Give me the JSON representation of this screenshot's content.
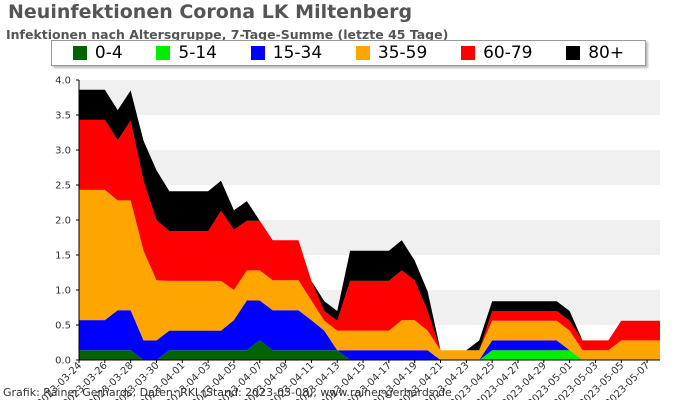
{
  "chart_data": {
    "type": "area",
    "stacked": true,
    "title": "Neuinfektionen Corona LK Miltenberg",
    "subtitle": "Infektionen nach Altersgruppe, 7-Tage-Summe (letzte 45 Tage)",
    "xlabel": "",
    "ylabel": "",
    "ylim": [
      0,
      4
    ],
    "y_ticks": [
      "0.0",
      "0.5",
      "1.0",
      "1.5",
      "2.0",
      "2.5",
      "3.0",
      "3.5",
      "4.0"
    ],
    "grid": "alternating horizontal bands",
    "legend_position": "top",
    "x_ticks": [
      "2023-03-24",
      "2023-03-26",
      "2023-03-28",
      "2023-03-30",
      "2023-04-01",
      "2023-04-03",
      "2023-04-05",
      "2023-04-07",
      "2023-04-09",
      "2023-04-11",
      "2023-04-13",
      "2023-04-15",
      "2023-04-17",
      "2023-04-19",
      "2023-04-21",
      "2023-04-23",
      "2023-04-25",
      "2023-04-27",
      "2023-04-29",
      "2023-05-01",
      "2023-05-03",
      "2023-05-05",
      "2023-05-07"
    ],
    "x": [
      "2023-03-24",
      "2023-03-25",
      "2023-03-26",
      "2023-03-27",
      "2023-03-28",
      "2023-03-29",
      "2023-03-30",
      "2023-03-31",
      "2023-04-01",
      "2023-04-02",
      "2023-04-03",
      "2023-04-04",
      "2023-04-05",
      "2023-04-06",
      "2023-04-07",
      "2023-04-08",
      "2023-04-09",
      "2023-04-10",
      "2023-04-11",
      "2023-04-12",
      "2023-04-13",
      "2023-04-14",
      "2023-04-15",
      "2023-04-16",
      "2023-04-17",
      "2023-04-18",
      "2023-04-19",
      "2023-04-20",
      "2023-04-21",
      "2023-04-22",
      "2023-04-23",
      "2023-04-24",
      "2023-04-25",
      "2023-04-26",
      "2023-04-27",
      "2023-04-28",
      "2023-04-29",
      "2023-04-30",
      "2023-05-01",
      "2023-05-02",
      "2023-05-03",
      "2023-05-04",
      "2023-05-05",
      "2023-05-06",
      "2023-05-07",
      "2023-05-08"
    ],
    "series": [
      {
        "name": "0-4",
        "color": "#006400",
        "values": [
          0.14,
          0.14,
          0.14,
          0.14,
          0.14,
          0.0,
          0.0,
          0.14,
          0.14,
          0.14,
          0.14,
          0.14,
          0.14,
          0.14,
          0.28,
          0.14,
          0.14,
          0.14,
          0.14,
          0.14,
          0.14,
          0.0,
          0.0,
          0.0,
          0.0,
          0.0,
          0.0,
          0.0,
          0.0,
          0.0,
          0.0,
          0.0,
          0.0,
          0.0,
          0.0,
          0.0,
          0.0,
          0.0,
          0.0,
          0.0,
          0.0,
          0.0,
          0.0,
          0.0,
          0.0,
          0.0
        ]
      },
      {
        "name": "5-14",
        "color": "#00ee00",
        "values": [
          0,
          0,
          0,
          0,
          0,
          0,
          0,
          0,
          0,
          0,
          0,
          0,
          0,
          0,
          0,
          0,
          0,
          0,
          0,
          0,
          0,
          0,
          0,
          0,
          0,
          0,
          0,
          0,
          0,
          0,
          0,
          0,
          0.14,
          0.14,
          0.14,
          0.14,
          0.14,
          0.14,
          0.14,
          0.0,
          0,
          0,
          0,
          0,
          0,
          0
        ]
      },
      {
        "name": "15-34",
        "color": "#0000ff",
        "values": [
          0.43,
          0.43,
          0.43,
          0.57,
          0.57,
          0.28,
          0.28,
          0.28,
          0.28,
          0.28,
          0.28,
          0.28,
          0.43,
          0.71,
          0.57,
          0.57,
          0.57,
          0.57,
          0.43,
          0.28,
          0.0,
          0.14,
          0.14,
          0.14,
          0.14,
          0.14,
          0.14,
          0.14,
          0.0,
          0.0,
          0.0,
          0.0,
          0.14,
          0.14,
          0.14,
          0.14,
          0.14,
          0.14,
          0.0,
          0.0,
          0.0,
          0.0,
          0.0,
          0.0,
          0.0,
          0.0
        ]
      },
      {
        "name": "35-59",
        "color": "#ffa500",
        "values": [
          1.86,
          1.86,
          1.86,
          1.57,
          1.57,
          1.28,
          0.86,
          0.71,
          0.71,
          0.71,
          0.71,
          0.71,
          0.43,
          0.43,
          0.43,
          0.43,
          0.43,
          0.43,
          0.28,
          0.14,
          0.28,
          0.28,
          0.28,
          0.28,
          0.28,
          0.43,
          0.43,
          0.28,
          0.14,
          0.14,
          0.14,
          0.14,
          0.28,
          0.28,
          0.28,
          0.28,
          0.28,
          0.28,
          0.28,
          0.14,
          0.14,
          0.14,
          0.28,
          0.28,
          0.28,
          0.28
        ]
      },
      {
        "name": "60-79",
        "color": "#ff0000",
        "values": [
          1.0,
          1.0,
          1.0,
          0.86,
          1.14,
          1.0,
          0.86,
          0.71,
          0.71,
          0.71,
          0.71,
          1.0,
          0.86,
          0.71,
          0.71,
          0.57,
          0.57,
          0.57,
          0.28,
          0.14,
          0.14,
          0.71,
          0.71,
          0.71,
          0.71,
          0.71,
          0.57,
          0.28,
          0.0,
          0.0,
          0.0,
          0.0,
          0.14,
          0.14,
          0.14,
          0.14,
          0.14,
          0.14,
          0.14,
          0.14,
          0.14,
          0.14,
          0.28,
          0.28,
          0.28,
          0.28
        ]
      },
      {
        "name": "80+",
        "color": "#000000",
        "values": [
          0.43,
          0.43,
          0.43,
          0.43,
          0.43,
          0.57,
          0.71,
          0.57,
          0.57,
          0.57,
          0.57,
          0.43,
          0.28,
          0.28,
          0.0,
          0.0,
          0.0,
          0.0,
          0.0,
          0.14,
          0.14,
          0.43,
          0.43,
          0.43,
          0.43,
          0.43,
          0.28,
          0.28,
          0.0,
          0.0,
          0.0,
          0.14,
          0.14,
          0.14,
          0.14,
          0.14,
          0.14,
          0.14,
          0.14,
          0.0,
          0.0,
          0.0,
          0.0,
          0.0,
          0.0,
          0.0
        ]
      }
    ]
  },
  "footer": "Grafik: Rainer Gerhards, Daten: RKI (Stand: 2023-05-08), www.rainer-gerhards.de"
}
